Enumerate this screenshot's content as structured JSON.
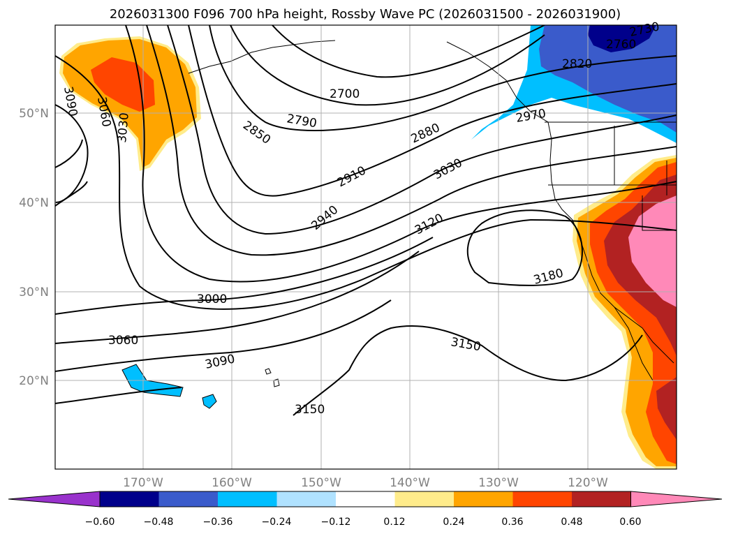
{
  "title": "2026031300 F096 700 hPa height, Rossby Wave PC (2026031500 - 2026031900)",
  "map": {
    "lat_labels": [
      "50°N",
      "40°N",
      "30°N",
      "20°N"
    ],
    "lon_labels": [
      "170°W",
      "160°W",
      "150°W",
      "140°W",
      "130°W",
      "120°W"
    ],
    "gridlines": true
  },
  "contour_labels": [
    "2700",
    "2730",
    "2760",
    "2790",
    "2820",
    "2850",
    "2880",
    "2910",
    "2940",
    "2970",
    "3000",
    "3030",
    "3060",
    "3090",
    "3120",
    "3150",
    "3180"
  ],
  "colorbar": {
    "colors": [
      "#9932CC",
      "#00008B",
      "#3A5BCB",
      "#00BFFF",
      "#B0E2FF",
      "#FFFFFF",
      "#FFEC8B",
      "#FFA500",
      "#FF4500",
      "#B22222",
      "#FF89B8"
    ],
    "tick_labels": [
      "−0.60",
      "−0.48",
      "−0.36",
      "−0.24",
      "−0.12",
      "0.12",
      "0.24",
      "0.36",
      "0.48",
      "0.60"
    ]
  }
}
